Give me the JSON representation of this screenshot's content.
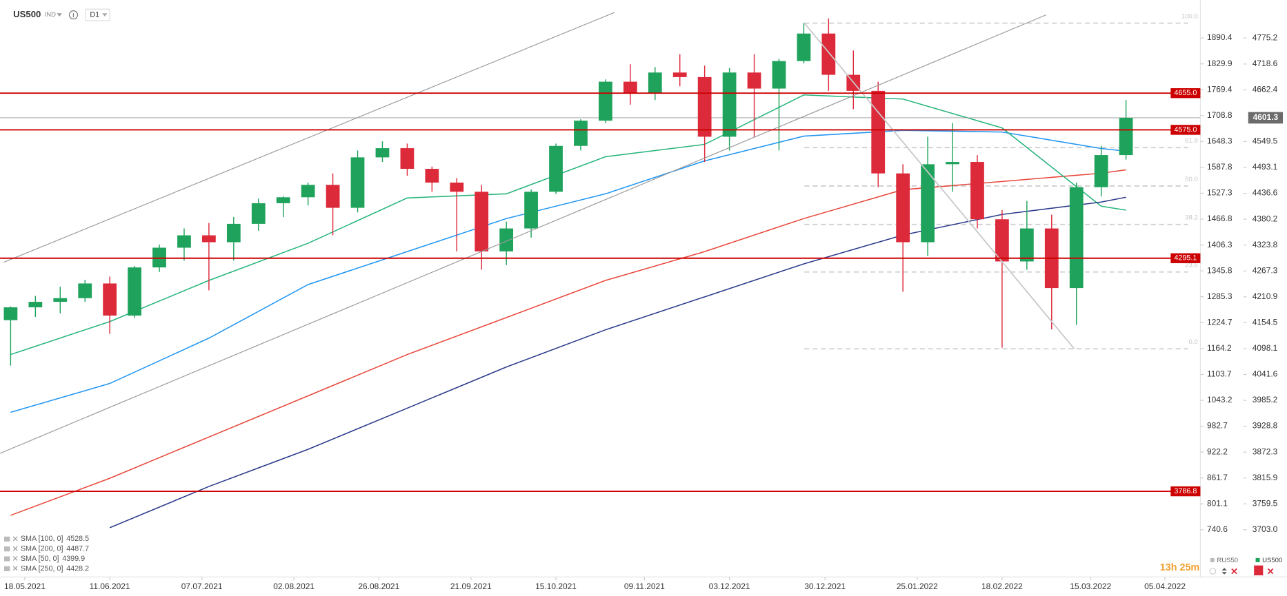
{
  "toolbar": {
    "symbol": "US500",
    "badge": "IND",
    "timeframe": "D1"
  },
  "chart_data": {
    "type": "candlestick",
    "x": [
      "2021-05-14",
      "2021-05-21",
      "2021-05-28",
      "2021-06-04",
      "2021-06-11",
      "2021-06-18",
      "2021-06-25",
      "2021-07-02",
      "2021-07-09",
      "2021-07-16",
      "2021-07-23",
      "2021-07-30",
      "2021-08-06",
      "2021-08-13",
      "2021-08-20",
      "2021-08-27",
      "2021-09-03",
      "2021-09-10",
      "2021-09-17",
      "2021-09-24",
      "2021-10-01",
      "2021-10-08",
      "2021-10-15",
      "2021-10-22",
      "2021-10-29",
      "2021-11-05",
      "2021-11-12",
      "2021-11-19",
      "2021-11-26",
      "2021-12-03",
      "2021-12-10",
      "2021-12-17",
      "2021-12-24",
      "2021-12-31",
      "2022-01-07",
      "2022-01-14",
      "2022-01-21",
      "2022-01-28",
      "2022-02-04",
      "2022-02-11",
      "2022-02-18",
      "2022-02-25",
      "2022-03-04",
      "2022-03-11",
      "2022-03-18",
      "2022-03-25"
    ],
    "open": [
      4160,
      4188,
      4200,
      4208,
      4240,
      4170,
      4275,
      4318,
      4345,
      4330,
      4370,
      4415,
      4428,
      4455,
      4405,
      4515,
      4535,
      4490,
      4460,
      4440,
      4310,
      4360,
      4440,
      4540,
      4595,
      4680,
      4655,
      4700,
      4690,
      4560,
      4700,
      4665,
      4725,
      4785,
      4695,
      4660,
      4480,
      4330,
      4500,
      4505,
      4380,
      4288,
      4360,
      4230,
      4450,
      4520
    ],
    "high": [
      4190,
      4213,
      4233,
      4248,
      4255,
      4278,
      4325,
      4360,
      4372,
      4385,
      4425,
      4430,
      4460,
      4480,
      4530,
      4550,
      4545,
      4495,
      4470,
      4455,
      4375,
      4445,
      4545,
      4598,
      4685,
      4718,
      4712,
      4740,
      4715,
      4710,
      4740,
      4730,
      4808,
      4818,
      4748,
      4680,
      4500,
      4560,
      4590,
      4520,
      4400,
      4420,
      4390,
      4460,
      4540,
      4640
    ],
    "low": [
      4061,
      4167,
      4175,
      4200,
      4130,
      4165,
      4265,
      4290,
      4225,
      4290,
      4355,
      4385,
      4410,
      4345,
      4395,
      4505,
      4475,
      4440,
      4310,
      4270,
      4280,
      4340,
      4435,
      4530,
      4590,
      4630,
      4640,
      4670,
      4505,
      4530,
      4560,
      4530,
      4720,
      4660,
      4620,
      4450,
      4222,
      4300,
      4440,
      4360,
      4100,
      4270,
      4140,
      4150,
      4430,
      4510
    ],
    "close": [
      4188,
      4200,
      4208,
      4240,
      4170,
      4275,
      4318,
      4345,
      4330,
      4370,
      4415,
      4428,
      4455,
      4405,
      4515,
      4535,
      4490,
      4460,
      4440,
      4310,
      4360,
      4440,
      4540,
      4595,
      4680,
      4655,
      4700,
      4690,
      4560,
      4700,
      4665,
      4725,
      4785,
      4695,
      4660,
      4480,
      4330,
      4500,
      4505,
      4380,
      4288,
      4360,
      4230,
      4450,
      4520,
      4601.3
    ],
    "up_color": "#1fa35c",
    "down_color": "#dd2a3b",
    "xlim": [
      "2021-05-11",
      "2022-04-15"
    ],
    "xticks": [
      {
        "value": "2021-05-18",
        "label": "18.05.2021"
      },
      {
        "value": "2021-06-11",
        "label": "11.06.2021"
      },
      {
        "value": "2021-07-07",
        "label": "07.07.2021"
      },
      {
        "value": "2021-08-02",
        "label": "02.08.2021"
      },
      {
        "value": "2021-08-26",
        "label": "26.08.2021"
      },
      {
        "value": "2021-09-21",
        "label": "21.09.2021"
      },
      {
        "value": "2021-10-15",
        "label": "15.10.2021"
      },
      {
        "value": "2021-11-09",
        "label": "09.11.2021"
      },
      {
        "value": "2021-12-03",
        "label": "03.12.2021"
      },
      {
        "value": "2021-12-30",
        "label": "30.12.2021"
      },
      {
        "value": "2022-01-25",
        "label": "25.01.2022"
      },
      {
        "value": "2022-02-18",
        "label": "18.02.2022"
      },
      {
        "value": "2022-03-15",
        "label": "15.03.2022"
      },
      {
        "value": "2022-04-05",
        "label": "05.04.2022"
      }
    ],
    "ylim": [
      3600,
      4858
    ],
    "yticks": [
      4775.2,
      4718.6,
      4662.4,
      4549.5,
      4493.1,
      4436.6,
      4380.2,
      4323.8,
      4267.3,
      4210.9,
      4154.5,
      4098.1,
      4041.6,
      3985.2,
      3928.8,
      3872.3,
      3815.9,
      3759.5,
      {
        "value": 3703,
        "label": "3703.0"
      }
    ],
    "y2lim": [
      630.2,
      1979.0
    ],
    "y2ticks": [
      1890.4,
      1829.9,
      1769.4,
      1708.8,
      1648.3,
      1587.8,
      1527.3,
      1466.8,
      1406.3,
      1345.8,
      1285.3,
      1224.7,
      1164.2,
      1103.7,
      1043.2,
      982.7,
      922.2,
      861.7,
      801.1,
      740.6
    ],
    "grid": false,
    "overlays": {
      "x": [
        "2021-05-14",
        "2021-06-11",
        "2021-07-09",
        "2021-08-06",
        "2021-09-03",
        "2021-10-01",
        "2021-10-29",
        "2021-11-26",
        "2021-12-24",
        "2022-01-21",
        "2022-02-18",
        "2022-03-18",
        "2022-03-25"
      ],
      "series": [
        {
          "name": "SMA [100, 0]",
          "color": "#2196f3",
          "values": [
            3959.1,
            4022.0,
            4120.9,
            4237.7,
            4309.6,
            4381.6,
            4435.5,
            4507.4,
            4561.3,
            4573.9,
            4570.3,
            4534.4,
            4528.5
          ]
        },
        {
          "name": "SMA [200, 0]",
          "color": "#e8473b",
          "values": [
            3734.4,
            3815.3,
            3905.2,
            3995.1,
            4085.0,
            4165.8,
            4246.7,
            4309.6,
            4381.6,
            4444.5,
            4462.5,
            4480.4,
            4487.7
          ]
        },
        {
          "name": "SMA [50, 0]",
          "color": "#27b57c",
          "values": [
            4085.0,
            4156.9,
            4246.7,
            4327.6,
            4426.5,
            4435.5,
            4516.4,
            4543.3,
            4651.2,
            4642.2,
            4579.3,
            4408.5,
            4399.9
          ]
        },
        {
          "name": "SMA [250, 0]",
          "color": "#2c3a8c",
          "values": [
            null,
            3707.5,
            3797.4,
            3878.3,
            3968.1,
            4058.0,
            4138.9,
            4210.8,
            4282.7,
            4345.6,
            4390.5,
            4417.5,
            4428.2
          ]
        }
      ]
    },
    "levels": [
      {
        "value": 4655,
        "label": "4655.0"
      },
      {
        "value": 4575,
        "label": "4575.0"
      },
      4295.1,
      3786.8
    ],
    "level_color": "#cc0000",
    "fibonacci": {
      "high": 4807.6,
      "low": 4097.5,
      "levels": [
        {
          "value": 100,
          "label": "100.0"
        },
        61.8,
        {
          "value": 50,
          "label": "50.0"
        },
        38.2,
        23.6,
        {
          "value": 0,
          "label": "0.0"
        }
      ]
    }
  },
  "footer": {
    "timer": "13h 25m",
    "instruments": [
      "RUS50",
      "US500"
    ]
  }
}
